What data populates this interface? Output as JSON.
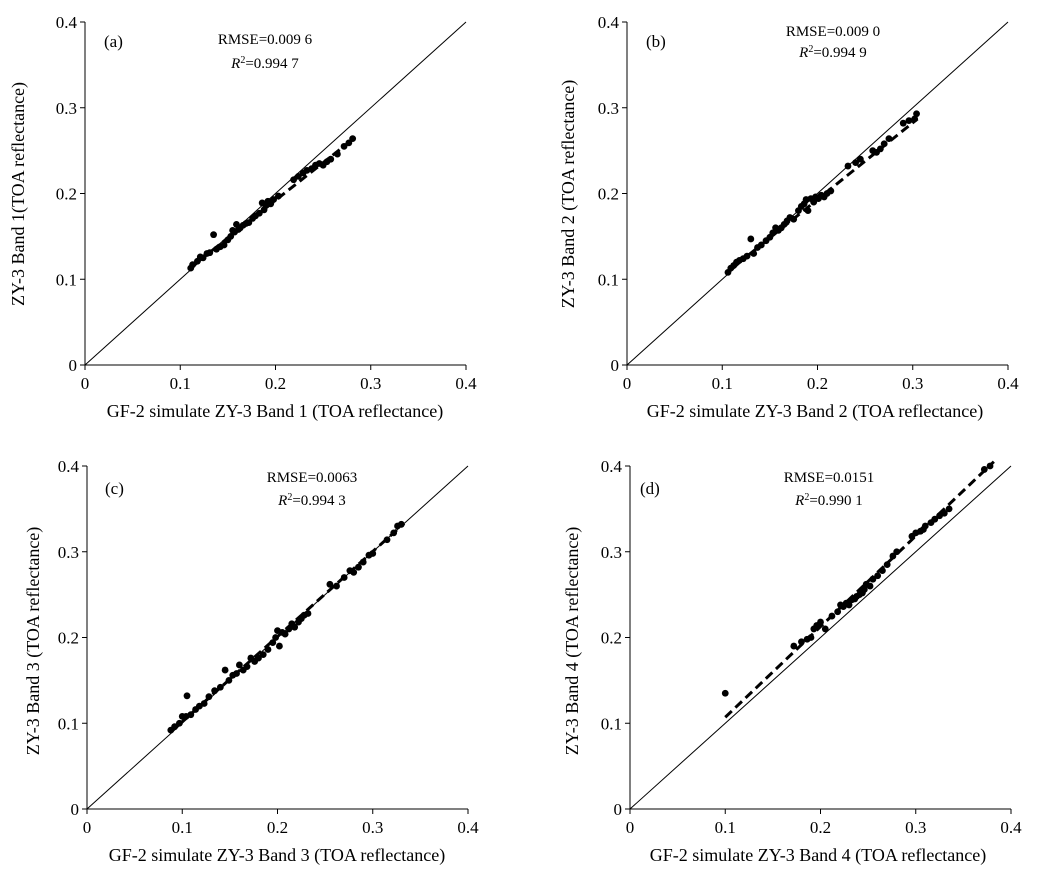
{
  "figure": {
    "domain": "scatter comparison of TOA reflectance"
  },
  "chart_data": [
    {
      "type": "scatter",
      "panel_label": "(a)",
      "xlabel": "GF-2 simulate ZY-3 Band 1 (TOA reflectance)",
      "ylabel": "ZY-3  Band 1(TOA reflectance)",
      "xlim": [
        0,
        0.4
      ],
      "ylim": [
        0,
        0.4
      ],
      "x_ticks": [
        "0",
        "0.1",
        "0.2",
        "0.3",
        "0.4"
      ],
      "y_ticks": [
        "0",
        "0.1",
        "0.2",
        "0.3",
        "0.4"
      ],
      "rmse_text": "RMSE=0.009 6",
      "r2_prefix": "R",
      "r2_sup": "2",
      "r2_value": "=0.994 7",
      "reference_line": "1:1",
      "fit_line": {
        "x": [
          0.11,
          0.282
        ],
        "y": [
          0.113,
          0.264
        ]
      },
      "points": [
        [
          0.111,
          0.113
        ],
        [
          0.113,
          0.117
        ],
        [
          0.118,
          0.121
        ],
        [
          0.121,
          0.126
        ],
        [
          0.124,
          0.125
        ],
        [
          0.128,
          0.13
        ],
        [
          0.131,
          0.131
        ],
        [
          0.135,
          0.152
        ],
        [
          0.138,
          0.135
        ],
        [
          0.142,
          0.138
        ],
        [
          0.146,
          0.14
        ],
        [
          0.15,
          0.146
        ],
        [
          0.153,
          0.15
        ],
        [
          0.155,
          0.157
        ],
        [
          0.157,
          0.155
        ],
        [
          0.159,
          0.164
        ],
        [
          0.161,
          0.158
        ],
        [
          0.163,
          0.16
        ],
        [
          0.166,
          0.163
        ],
        [
          0.169,
          0.165
        ],
        [
          0.172,
          0.166
        ],
        [
          0.176,
          0.171
        ],
        [
          0.179,
          0.174
        ],
        [
          0.183,
          0.177
        ],
        [
          0.186,
          0.189
        ],
        [
          0.188,
          0.181
        ],
        [
          0.19,
          0.186
        ],
        [
          0.192,
          0.191
        ],
        [
          0.195,
          0.188
        ],
        [
          0.198,
          0.193
        ],
        [
          0.203,
          0.197
        ],
        [
          0.219,
          0.216
        ],
        [
          0.224,
          0.22
        ],
        [
          0.229,
          0.224
        ],
        [
          0.233,
          0.227
        ],
        [
          0.238,
          0.229
        ],
        [
          0.242,
          0.233
        ],
        [
          0.246,
          0.235
        ],
        [
          0.25,
          0.233
        ],
        [
          0.254,
          0.237
        ],
        [
          0.258,
          0.24
        ],
        [
          0.265,
          0.246
        ],
        [
          0.272,
          0.255
        ],
        [
          0.277,
          0.259
        ],
        [
          0.281,
          0.264
        ]
      ]
    },
    {
      "type": "scatter",
      "panel_label": "(b)",
      "xlabel": "GF-2 simulate ZY-3 Band 2 (TOA reflectance)",
      "ylabel": "ZY-3 Band 2 (TOA reflectance)",
      "xlim": [
        0,
        0.4
      ],
      "ylim": [
        0,
        0.4
      ],
      "x_ticks": [
        "0",
        "0.1",
        "0.2",
        "0.3",
        "0.4"
      ],
      "y_ticks": [
        "0",
        "0.1",
        "0.2",
        "0.3",
        "0.4"
      ],
      "rmse_text": "RMSE=0.009 0",
      "r2_prefix": "R",
      "r2_sup": "2",
      "r2_value": "=0.994 9",
      "reference_line": "1:1",
      "fit_line": {
        "x": [
          0.105,
          0.305
        ],
        "y": [
          0.108,
          0.287
        ]
      },
      "points": [
        [
          0.106,
          0.108
        ],
        [
          0.109,
          0.113
        ],
        [
          0.112,
          0.116
        ],
        [
          0.115,
          0.12
        ],
        [
          0.118,
          0.122
        ],
        [
          0.122,
          0.124
        ],
        [
          0.126,
          0.127
        ],
        [
          0.13,
          0.147
        ],
        [
          0.133,
          0.13
        ],
        [
          0.137,
          0.137
        ],
        [
          0.141,
          0.14
        ],
        [
          0.146,
          0.145
        ],
        [
          0.15,
          0.149
        ],
        [
          0.153,
          0.154
        ],
        [
          0.156,
          0.16
        ],
        [
          0.159,
          0.157
        ],
        [
          0.162,
          0.16
        ],
        [
          0.165,
          0.164
        ],
        [
          0.168,
          0.168
        ],
        [
          0.171,
          0.172
        ],
        [
          0.175,
          0.17
        ],
        [
          0.18,
          0.18
        ],
        [
          0.183,
          0.185
        ],
        [
          0.186,
          0.188
        ],
        [
          0.188,
          0.193
        ],
        [
          0.19,
          0.18
        ],
        [
          0.193,
          0.194
        ],
        [
          0.196,
          0.19
        ],
        [
          0.198,
          0.196
        ],
        [
          0.201,
          0.194
        ],
        [
          0.204,
          0.198
        ],
        [
          0.207,
          0.196
        ],
        [
          0.21,
          0.2
        ],
        [
          0.214,
          0.203
        ],
        [
          0.232,
          0.232
        ],
        [
          0.24,
          0.236
        ],
        [
          0.245,
          0.24
        ],
        [
          0.258,
          0.25
        ],
        [
          0.262,
          0.248
        ],
        [
          0.266,
          0.252
        ],
        [
          0.27,
          0.258
        ],
        [
          0.275,
          0.264
        ],
        [
          0.29,
          0.282
        ],
        [
          0.296,
          0.285
        ],
        [
          0.302,
          0.287
        ],
        [
          0.304,
          0.293
        ]
      ]
    },
    {
      "type": "scatter",
      "panel_label": "(c)",
      "xlabel": "GF-2 simulate ZY-3 Band 3 (TOA reflectance)",
      "ylabel": "ZY-3 Band 3 (TOA reflectance)",
      "xlim": [
        0,
        0.4
      ],
      "ylim": [
        0,
        0.4
      ],
      "x_ticks": [
        "0",
        "0.1",
        "0.2",
        "0.3",
        "0.4"
      ],
      "y_ticks": [
        "0",
        "0.1",
        "0.2",
        "0.3",
        "0.4"
      ],
      "rmse_text": "RMSE=0.0063",
      "r2_prefix": "R",
      "r2_sup": "2",
      "r2_value": "=0.994 3",
      "reference_line": "1:1",
      "fit_line": {
        "x": [
          0.088,
          0.333
        ],
        "y": [
          0.09,
          0.333
        ]
      },
      "points": [
        [
          0.088,
          0.092
        ],
        [
          0.092,
          0.096
        ],
        [
          0.097,
          0.1
        ],
        [
          0.1,
          0.108
        ],
        [
          0.104,
          0.108
        ],
        [
          0.105,
          0.132
        ],
        [
          0.109,
          0.11
        ],
        [
          0.114,
          0.116
        ],
        [
          0.118,
          0.12
        ],
        [
          0.123,
          0.123
        ],
        [
          0.128,
          0.131
        ],
        [
          0.134,
          0.138
        ],
        [
          0.14,
          0.142
        ],
        [
          0.145,
          0.162
        ],
        [
          0.149,
          0.15
        ],
        [
          0.153,
          0.156
        ],
        [
          0.157,
          0.158
        ],
        [
          0.16,
          0.168
        ],
        [
          0.164,
          0.162
        ],
        [
          0.168,
          0.166
        ],
        [
          0.172,
          0.176
        ],
        [
          0.176,
          0.172
        ],
        [
          0.18,
          0.176
        ],
        [
          0.185,
          0.18
        ],
        [
          0.19,
          0.186
        ],
        [
          0.195,
          0.194
        ],
        [
          0.198,
          0.2
        ],
        [
          0.2,
          0.208
        ],
        [
          0.202,
          0.19
        ],
        [
          0.205,
          0.206
        ],
        [
          0.208,
          0.204
        ],
        [
          0.212,
          0.21
        ],
        [
          0.215,
          0.216
        ],
        [
          0.218,
          0.212
        ],
        [
          0.222,
          0.218
        ],
        [
          0.225,
          0.222
        ],
        [
          0.228,
          0.226
        ],
        [
          0.232,
          0.228
        ],
        [
          0.255,
          0.262
        ],
        [
          0.262,
          0.26
        ],
        [
          0.27,
          0.27
        ],
        [
          0.276,
          0.278
        ],
        [
          0.28,
          0.276
        ],
        [
          0.285,
          0.282
        ],
        [
          0.29,
          0.288
        ],
        [
          0.296,
          0.296
        ],
        [
          0.3,
          0.298
        ],
        [
          0.315,
          0.314
        ],
        [
          0.322,
          0.322
        ],
        [
          0.326,
          0.33
        ],
        [
          0.33,
          0.332
        ]
      ]
    },
    {
      "type": "scatter",
      "panel_label": "(d)",
      "xlabel": "GF-2 simulate ZY-3 Band 4 (TOA reflectance)",
      "ylabel": "ZY-3 Band 4 (TOA reflectance)",
      "xlim": [
        0,
        0.4
      ],
      "ylim": [
        0,
        0.4
      ],
      "x_ticks": [
        "0",
        "0.1",
        "0.2",
        "0.3",
        "0.4"
      ],
      "y_ticks": [
        "0",
        "0.1",
        "0.2",
        "0.3",
        "0.4"
      ],
      "rmse_text": "RMSE=0.0151",
      "r2_prefix": "R",
      "r2_sup": "2",
      "r2_value": "=0.990 1",
      "reference_line": "1:1",
      "fit_line": {
        "x": [
          0.1,
          0.382
        ],
        "y": [
          0.107,
          0.405
        ]
      },
      "points": [
        [
          0.1,
          0.135
        ],
        [
          0.172,
          0.19
        ],
        [
          0.18,
          0.195
        ],
        [
          0.186,
          0.198
        ],
        [
          0.19,
          0.2
        ],
        [
          0.193,
          0.21
        ],
        [
          0.196,
          0.214
        ],
        [
          0.2,
          0.218
        ],
        [
          0.205,
          0.21
        ],
        [
          0.212,
          0.225
        ],
        [
          0.218,
          0.23
        ],
        [
          0.221,
          0.238
        ],
        [
          0.224,
          0.236
        ],
        [
          0.227,
          0.24
        ],
        [
          0.23,
          0.238
        ],
        [
          0.233,
          0.244
        ],
        [
          0.236,
          0.245
        ],
        [
          0.238,
          0.248
        ],
        [
          0.241,
          0.25
        ],
        [
          0.244,
          0.252
        ],
        [
          0.246,
          0.256
        ],
        [
          0.248,
          0.262
        ],
        [
          0.252,
          0.26
        ],
        [
          0.255,
          0.268
        ],
        [
          0.26,
          0.272
        ],
        [
          0.265,
          0.278
        ],
        [
          0.27,
          0.285
        ],
        [
          0.276,
          0.295
        ],
        [
          0.28,
          0.3
        ],
        [
          0.296,
          0.318
        ],
        [
          0.3,
          0.322
        ],
        [
          0.305,
          0.324
        ],
        [
          0.308,
          0.326
        ],
        [
          0.31,
          0.33
        ],
        [
          0.316,
          0.334
        ],
        [
          0.32,
          0.338
        ],
        [
          0.325,
          0.342
        ],
        [
          0.33,
          0.345
        ],
        [
          0.335,
          0.35
        ],
        [
          0.372,
          0.396
        ],
        [
          0.378,
          0.4
        ]
      ]
    }
  ]
}
